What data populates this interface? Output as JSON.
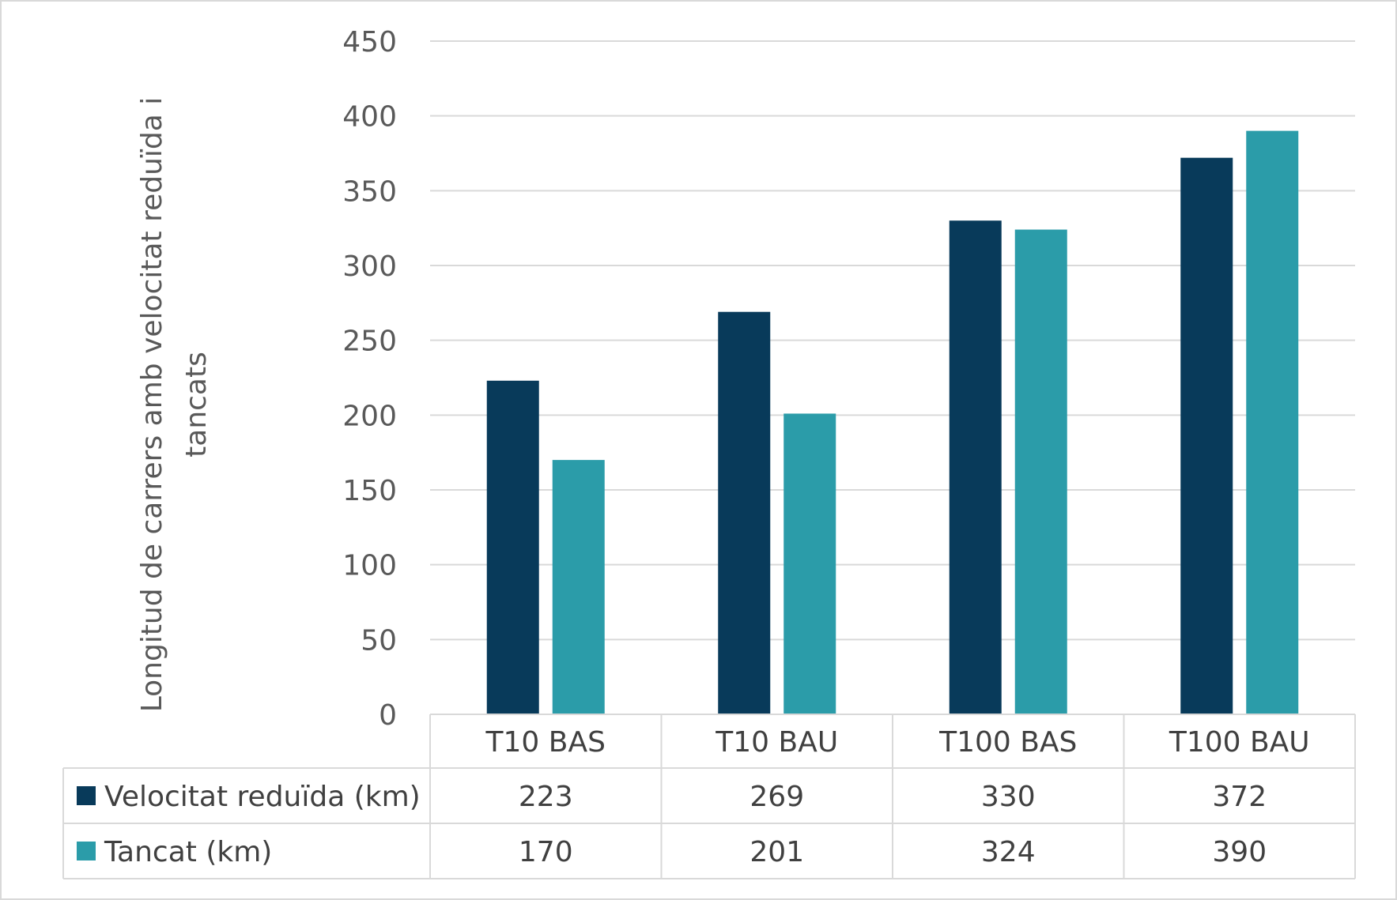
{
  "chart_data": {
    "type": "bar",
    "categories": [
      "T10 BAS",
      "T10 BAU",
      "T100 BAS",
      "T100 BAU"
    ],
    "series": [
      {
        "name": "Velocitat reduïda (km)",
        "values": [
          223,
          269,
          330,
          372
        ],
        "color": "#083a5a"
      },
      {
        "name": "Tancat (km)",
        "values": [
          170,
          201,
          324,
          390
        ],
        "color": "#2b9ca9"
      }
    ],
    "title": "",
    "xlabel": "",
    "ylabel_lines": [
      "Longitud de carrers amb velocitat reduïda i",
      "tancats"
    ],
    "ylim": [
      0,
      450
    ],
    "yticks": [
      0,
      50,
      100,
      150,
      200,
      250,
      300,
      350,
      400,
      450
    ],
    "grid": true,
    "legend": "data-table"
  },
  "colors": {
    "gridline": "#d9d9d9",
    "table_border": "#d9d9d9"
  }
}
